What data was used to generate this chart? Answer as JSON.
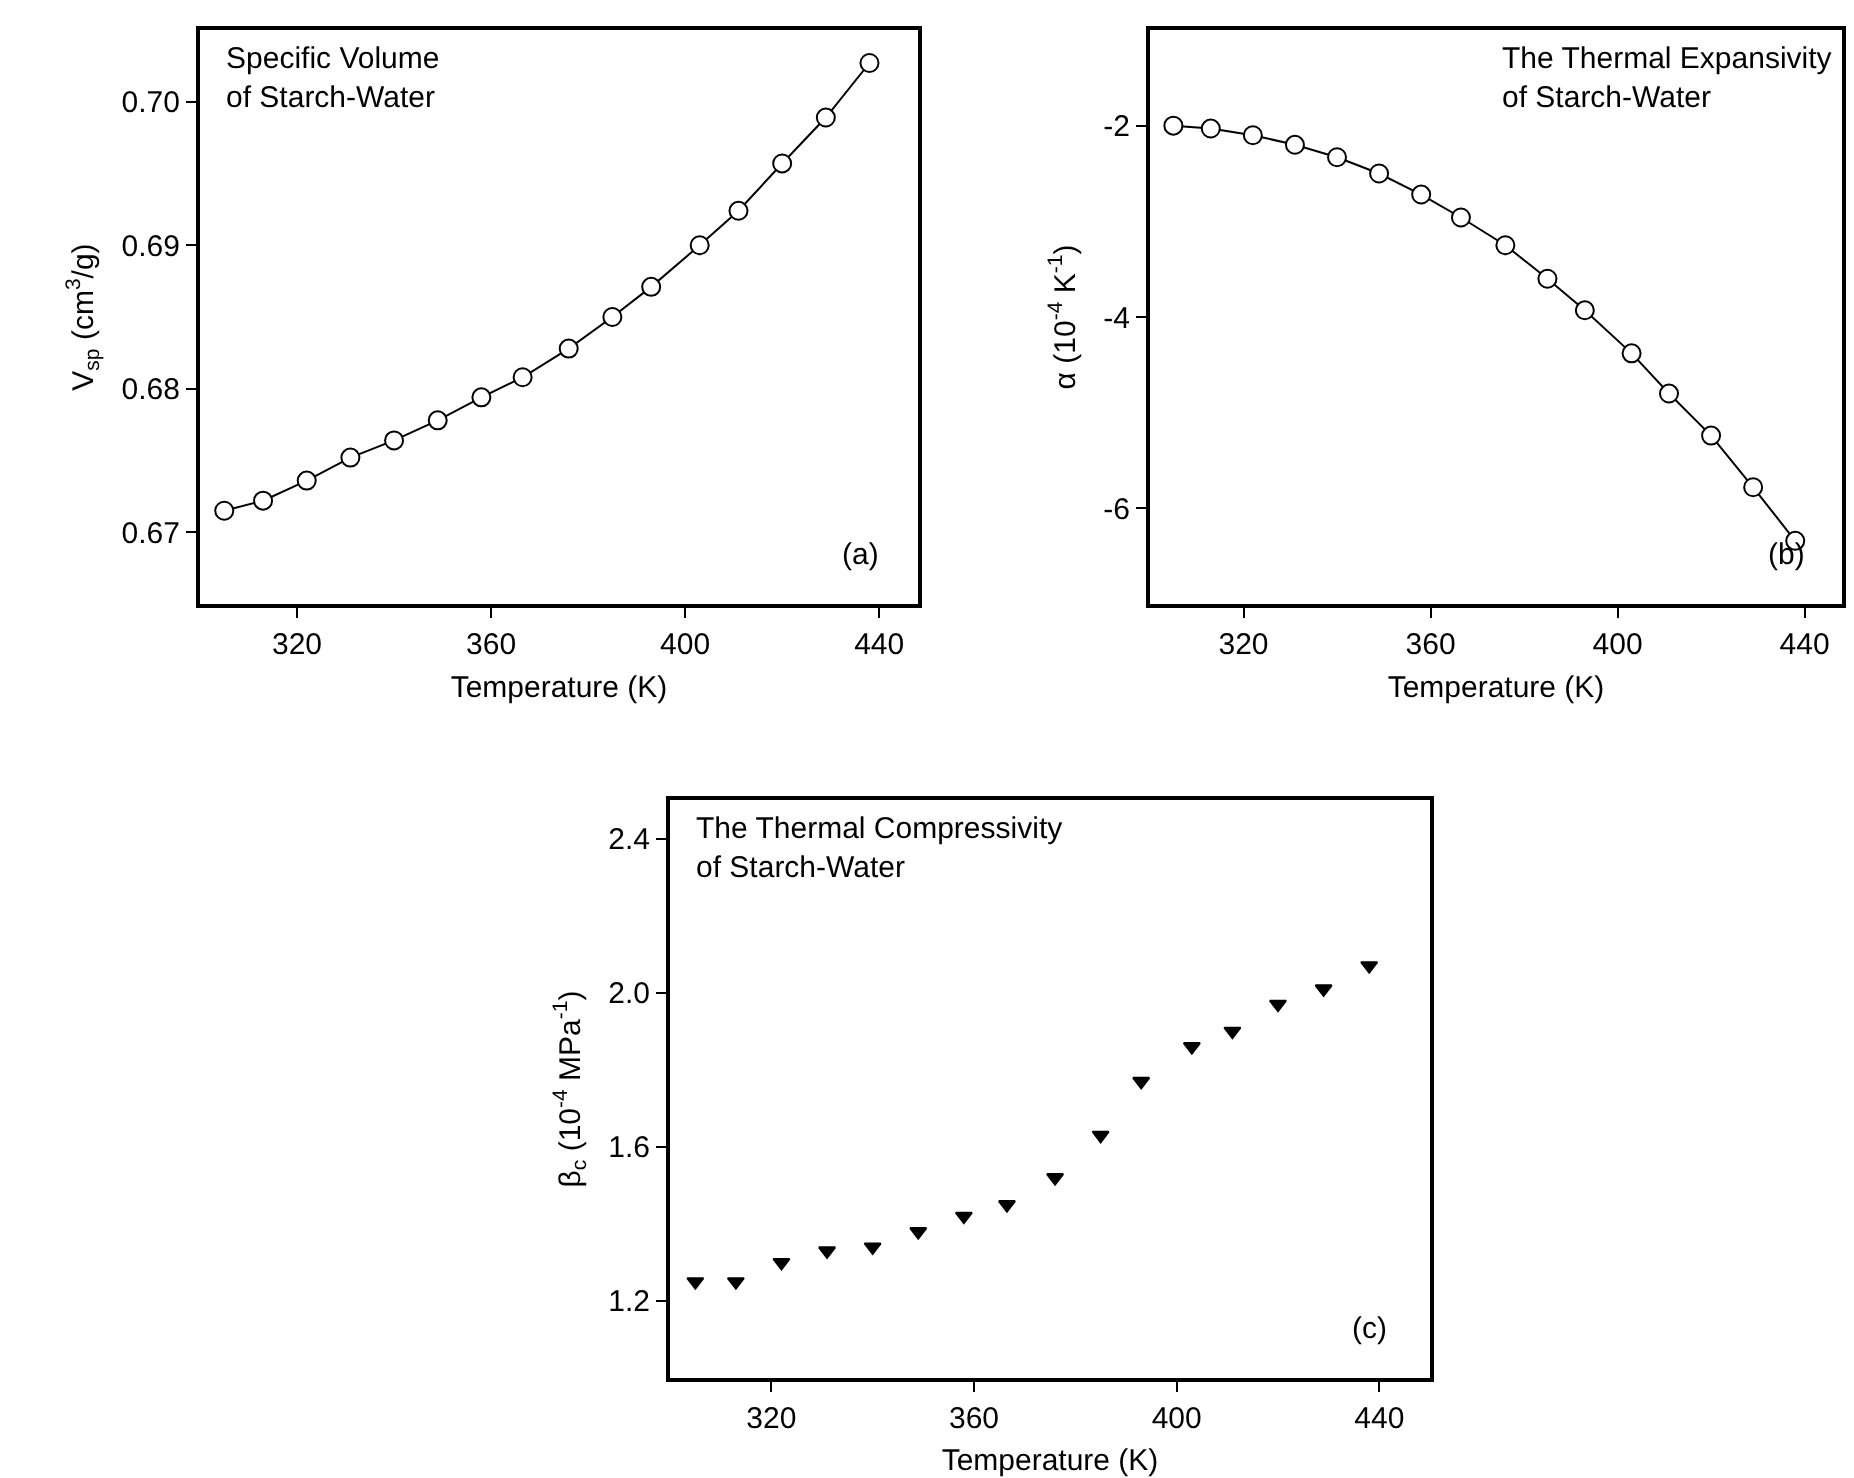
{
  "chart_data": [
    {
      "type": "line",
      "title": "Specific Volume\nof Starch-Water",
      "xlabel": "Temperature (K)",
      "ylabel": "V$_{sp}$ (cm$^{3}$/g)",
      "annotations": [
        "(a)"
      ],
      "x": [
        305,
        313,
        322,
        331,
        340,
        349,
        358,
        366.5,
        376,
        385,
        393,
        403,
        411,
        420,
        429,
        438
      ],
      "series": [
        {
          "color": "#000000",
          "values": [
            0.6715,
            0.6722,
            0.6736,
            0.6752,
            0.6764,
            0.6778,
            0.6794,
            0.6808,
            0.6828,
            0.685,
            0.6871,
            0.69,
            0.6924,
            0.6957,
            0.6989,
            0.7027
          ]
        }
      ],
      "xlim": [
        300,
        448
      ],
      "xticks": [
        320,
        360,
        400,
        440
      ],
      "ylim": [
        0.665,
        0.705
      ],
      "yticks": [
        {
          "value": 0.67,
          "label": "0.67"
        },
        {
          "value": 0.68,
          "label": "0.68"
        },
        {
          "value": 0.69,
          "label": "0.69"
        },
        {
          "value": 0.7,
          "label": "0.70"
        }
      ],
      "marker": "circle",
      "line_style": "solid",
      "grid": false
    },
    {
      "type": "line",
      "title": "The Thermal Expansivity\nof Starch-Water",
      "xlabel": "Temperature (K)",
      "ylabel": "α (10$^{-4}$ K$^{-1}$)",
      "annotations": [
        "(b)"
      ],
      "x": [
        305,
        313,
        322,
        331,
        340,
        349,
        358,
        366.5,
        376,
        385,
        393,
        403,
        411,
        420,
        429,
        438
      ],
      "series": [
        {
          "color": "#000000",
          "values": [
            -2.0,
            -2.03,
            -2.1,
            -2.2,
            -2.33,
            -2.5,
            -2.72,
            -2.96,
            -3.25,
            -3.6,
            -3.93,
            -4.38,
            -4.8,
            -5.24,
            -5.78,
            -6.34
          ]
        }
      ],
      "xlim": [
        300,
        448
      ],
      "xticks": [
        320,
        360,
        400,
        440
      ],
      "ylim": [
        -7,
        -1
      ],
      "yticks": [
        -6,
        -4,
        -2
      ],
      "marker": "circle",
      "line_style": "solid",
      "grid": false
    },
    {
      "type": "scatter",
      "title": "The Thermal Compressivity\nof Starch-Water",
      "xlabel": "Temperature (K)",
      "ylabel": "β$_{c}$ (10$^{-4}$ MPa$^{-1}$)",
      "annotations": [
        "(c)"
      ],
      "x": [
        305,
        313,
        322,
        331,
        340,
        349,
        358,
        366.5,
        376,
        385,
        393,
        403,
        411,
        420,
        429,
        438
      ],
      "series": [
        {
          "color": "#000000",
          "values": [
            1.25,
            1.25,
            1.3,
            1.33,
            1.34,
            1.38,
            1.42,
            1.45,
            1.52,
            1.63,
            1.77,
            1.86,
            1.9,
            1.97,
            2.01,
            2.07
          ]
        }
      ],
      "xlim": [
        300,
        450
      ],
      "xticks": [
        320,
        360,
        400,
        440
      ],
      "ylim": [
        1.0,
        2.5
      ],
      "yticks": [
        {
          "value": 1.2,
          "label": "1.2"
        },
        {
          "value": 1.6,
          "label": "1.6"
        },
        {
          "value": 2.0,
          "label": "2.0"
        },
        {
          "value": 2.4,
          "label": "2.4"
        }
      ],
      "marker": "triangle",
      "grid": false
    }
  ]
}
